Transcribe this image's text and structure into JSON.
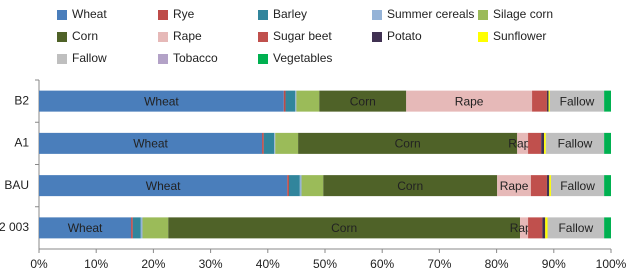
{
  "chart_data": {
    "type": "stacked-barh-percent",
    "categories": [
      "B2",
      "A1",
      "BAU",
      "2 003"
    ],
    "xlim": [
      0,
      100
    ],
    "xticks": [
      {
        "value": 0,
        "label": "0%"
      },
      {
        "value": 10,
        "label": "10%"
      },
      {
        "value": 20,
        "label": "20%"
      },
      {
        "value": 30,
        "label": "30%"
      },
      {
        "value": 40,
        "label": "40%"
      },
      {
        "value": 50,
        "label": "50%"
      },
      {
        "value": 60,
        "label": "60%"
      },
      {
        "value": 70,
        "label": "70%"
      },
      {
        "value": 80,
        "label": "80%"
      },
      {
        "value": 90,
        "label": "90%"
      },
      {
        "value": 100,
        "label": "100%"
      }
    ],
    "legend": "top",
    "series": [
      {
        "name": "Wheat",
        "color": "#4a7ebb",
        "values": [
          42.8,
          39.0,
          43.4,
          16.1
        ],
        "labels": true
      },
      {
        "name": "Rye",
        "color": "#be4b48",
        "values": [
          0.3,
          0.3,
          0.3,
          0.3
        ]
      },
      {
        "name": "Barley",
        "color": "#31859c",
        "values": [
          1.7,
          1.8,
          1.9,
          1.4
        ]
      },
      {
        "name": "Summer cereals",
        "color": "#95b3d7",
        "values": [
          0.2,
          0.2,
          0.3,
          0.3
        ]
      },
      {
        "name": "Silage corn",
        "color": "#9bbb59",
        "values": [
          4.0,
          4.0,
          3.8,
          4.5
        ]
      },
      {
        "name": "Corn",
        "color": "#4f6228",
        "values": [
          15.2,
          38.3,
          30.4,
          61.5
        ],
        "labels": true
      },
      {
        "name": "Rape",
        "color": "#e6b9b8",
        "values": [
          22.0,
          1.9,
          5.9,
          1.4
        ],
        "labels": true
      },
      {
        "name": "Sugar beet",
        "color": "#c0504d",
        "values": [
          2.6,
          2.3,
          2.8,
          2.5
        ]
      },
      {
        "name": "Potato",
        "color": "#403152",
        "values": [
          0.3,
          0.5,
          0.4,
          0.5
        ]
      },
      {
        "name": "Sunflower",
        "color": "#ffff00",
        "values": [
          0.2,
          0.3,
          0.3,
          0.4
        ]
      },
      {
        "name": "Fallow",
        "color": "#bfbfbf",
        "values": [
          9.5,
          10.2,
          9.3,
          9.9
        ],
        "labels": true
      },
      {
        "name": "Tobacco",
        "color": "#b3a2c7",
        "values": [
          0,
          0,
          0,
          0
        ]
      },
      {
        "name": "Vegetables",
        "color": "#00b050",
        "values": [
          1.2,
          1.2,
          1.2,
          1.2
        ]
      }
    ]
  }
}
